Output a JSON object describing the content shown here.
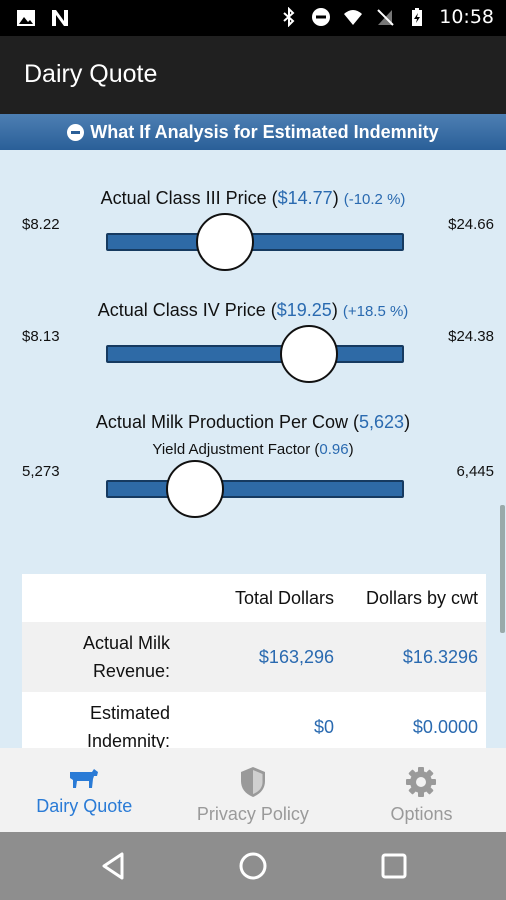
{
  "status_bar": {
    "time": "10:58",
    "left_icons": [
      "image-icon",
      "n-icon"
    ],
    "right_icons": [
      "bluetooth-icon",
      "do-not-disturb-icon",
      "wifi-icon",
      "no-sim-icon",
      "battery-charging-icon"
    ]
  },
  "app_bar": {
    "title": "Dairy Quote"
  },
  "section": {
    "title": "What If Analysis for Estimated Indemnity"
  },
  "sliders": [
    {
      "label": "Actual Class III Price (",
      "value": "$14.77",
      "close": ")",
      "pct": "(-10.2 %)",
      "min": "$8.22",
      "max": "$24.66",
      "level": 0.4
    },
    {
      "label": "Actual Class IV Price (",
      "value": "$19.25",
      "close": ")",
      "pct": "(+18.5 %)",
      "min": "$8.13",
      "max": "$24.38",
      "level": 0.68
    },
    {
      "label": "Actual Milk Production Per Cow (",
      "value": "5,623",
      "close": ")",
      "sub_label": "Yield Adjustment Factor (",
      "sub_value": "0.96",
      "sub_close": ")",
      "min": "5,273",
      "max": "6,445",
      "level": 0.3
    }
  ],
  "table": {
    "headers": [
      "Total Dollars",
      "Dollars by cwt"
    ],
    "rows": [
      {
        "label": "Actual Milk Revenue:",
        "total": "$163,296",
        "cwt": "$16.3296"
      },
      {
        "label": "Estimated Indemnity:",
        "total": "$0",
        "cwt": "$0.0000"
      }
    ]
  },
  "bottom_nav": [
    {
      "label": "Dairy Quote",
      "icon": "cow-icon",
      "active": true
    },
    {
      "label": "Privacy Policy",
      "icon": "shield-icon",
      "active": false
    },
    {
      "label": "Options",
      "icon": "gear-icon",
      "active": false
    }
  ],
  "colors": {
    "accent": "#2a6ab0",
    "header": "#2a5f98",
    "background": "#dcebf5",
    "nav_active": "#2a7bd6"
  }
}
